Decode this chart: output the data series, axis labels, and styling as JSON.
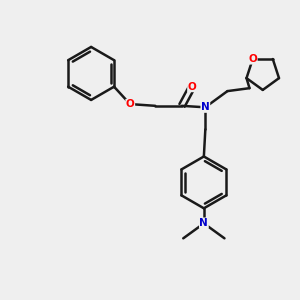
{
  "bg_color": "#efefef",
  "bond_color": "#1a1a1a",
  "atom_colors": {
    "O": "#ff0000",
    "N": "#0000cc"
  },
  "figsize": [
    3.0,
    3.0
  ],
  "dpi": 100
}
